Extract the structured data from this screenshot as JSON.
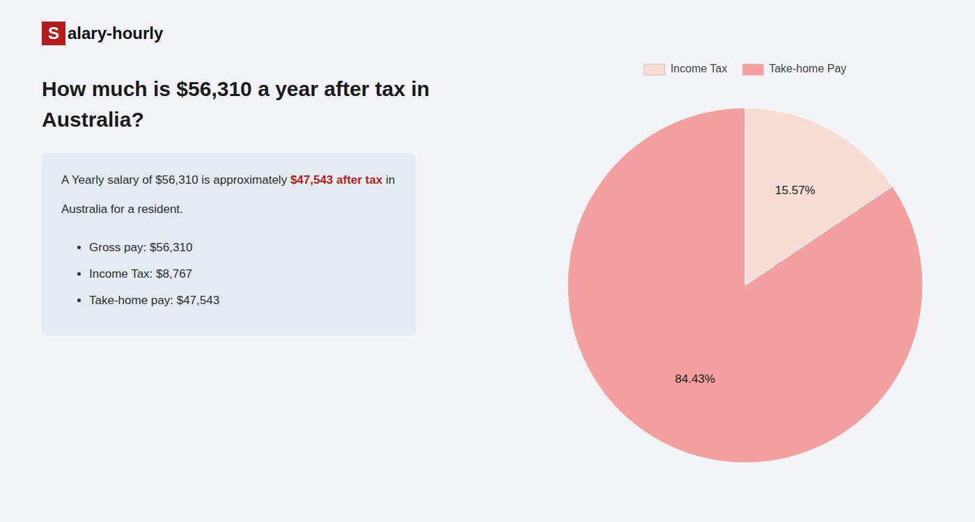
{
  "chart_data": {
    "type": "pie",
    "title": [
      "How much is $56,310 a year after tax in",
      "Australia?"
    ],
    "annotations": [
      {
        "text": "S",
        "color": "#b71c1c"
      },
      {
        "text": "alary-hourly"
      },
      {
        "text": "A Yearly salary of $56,310 is approximately "
      },
      {
        "text": "$47,543 after tax",
        "color": "#b71c1c"
      },
      {
        "text": " in"
      },
      {
        "text": "Australia for a resident."
      },
      {
        "text": "Gross pay: $56,310"
      },
      {
        "text": "Income Tax: $8,767"
      },
      {
        "text": "Take-home pay: $47,543"
      }
    ],
    "categories": [
      "Income Tax",
      "Take-home Pay"
    ],
    "values": [
      15.57,
      84.43
    ],
    "value_labels": [
      "15.57%",
      "84.43%"
    ],
    "colors": [
      "#f8ddd5",
      "#f4a0a0"
    ],
    "data_labels": true,
    "legend": "top"
  }
}
